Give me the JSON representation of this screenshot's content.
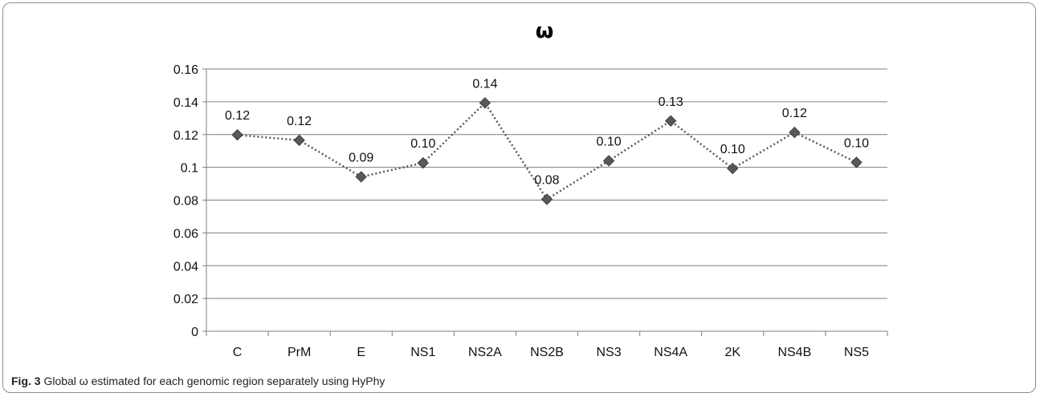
{
  "chart_data": {
    "type": "line",
    "title": "ω",
    "categories": [
      "C",
      "PrM",
      "E",
      "NS1",
      "NS2A",
      "NS2B",
      "NS3",
      "NS4A",
      "2K",
      "NS4B",
      "NS5"
    ],
    "series": [
      {
        "values": [
          0.1198,
          0.1165,
          0.0942,
          0.1027,
          0.1393,
          0.0805,
          0.104,
          0.1283,
          0.0993,
          0.1213,
          0.103
        ],
        "data_labels": [
          "0.12",
          "0.12",
          "0.09",
          "0.10",
          "0.14",
          "0.08",
          "0.10",
          "0.13",
          "0.10",
          "0.12",
          "0.10"
        ],
        "color": "#595959",
        "marker": "diamond",
        "line_style": "dotted"
      }
    ],
    "ylim": [
      0,
      0.16
    ],
    "yticks": [
      "0",
      "0.02",
      "0.04",
      "0.06",
      "0.08",
      "0.1",
      "0.12",
      "0.14",
      "0.16"
    ],
    "grid": true,
    "legend": "none",
    "colors": {
      "grid": "#7f7f7f",
      "axis": "#7f7f7f",
      "marker": "#595959"
    }
  },
  "caption": {
    "label": "Fig. 3",
    "text": " Global ω estimated for each genomic region separately using HyPhy"
  }
}
